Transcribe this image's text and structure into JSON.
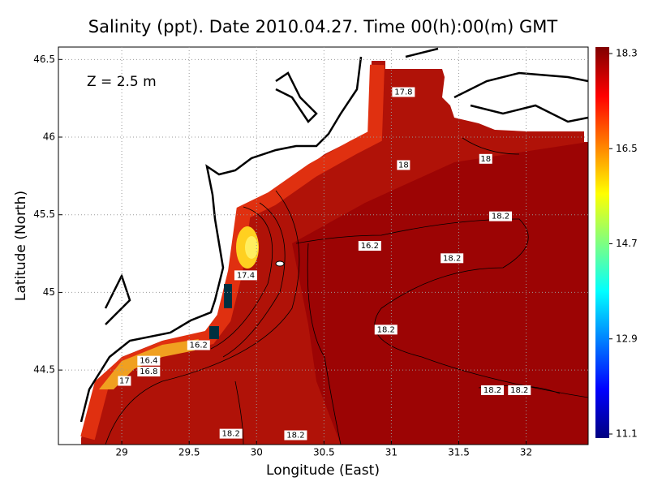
{
  "chart_data": {
    "type": "contour-map",
    "title": "Salinity (ppt). Date 2010.04.27. Time 00(h):00(m) GMT",
    "annotation": "Z = 2.5 m",
    "x_label": "Longitude (East)",
    "y_label": "Latitude (North)",
    "xlim": [
      28.53,
      32.46
    ],
    "ylim": [
      44.02,
      46.58
    ],
    "xticks": [
      29,
      29.5,
      30,
      30.5,
      31,
      31.5,
      32
    ],
    "yticks": [
      44.5,
      45,
      45.5,
      46,
      46.5
    ],
    "grid": true,
    "colorbar": {
      "lim": [
        11.1,
        18.3
      ],
      "ticks": [
        11.1,
        12.9,
        14.7,
        16.5,
        18.3
      ]
    },
    "contour_labels": [
      {
        "value": 17.8,
        "lon": 31.09,
        "lat": 46.29
      },
      {
        "value": 18,
        "lon": 31.09,
        "lat": 45.82
      },
      {
        "value": 18,
        "lon": 31.7,
        "lat": 45.86
      },
      {
        "value": 18.2,
        "lon": 31.81,
        "lat": 45.49
      },
      {
        "value": 16.2,
        "lon": 30.84,
        "lat": 45.3
      },
      {
        "value": 18.2,
        "lon": 31.45,
        "lat": 45.22
      },
      {
        "value": 17.4,
        "lon": 29.92,
        "lat": 45.11
      },
      {
        "value": 16.2,
        "lon": 29.57,
        "lat": 44.66
      },
      {
        "value": 16.4,
        "lon": 29.2,
        "lat": 44.56
      },
      {
        "value": 16.8,
        "lon": 29.2,
        "lat": 44.49
      },
      {
        "value": 17,
        "lon": 29.02,
        "lat": 44.43
      },
      {
        "value": 18.2,
        "lon": 30.96,
        "lat": 44.76
      },
      {
        "value": 18.2,
        "lon": 31.75,
        "lat": 44.37
      },
      {
        "value": 18.2,
        "lon": 31.95,
        "lat": 44.37
      },
      {
        "value": 18.2,
        "lon": 29.81,
        "lat": 44.09
      },
      {
        "value": 18.2,
        "lon": 30.29,
        "lat": 44.08
      }
    ]
  }
}
